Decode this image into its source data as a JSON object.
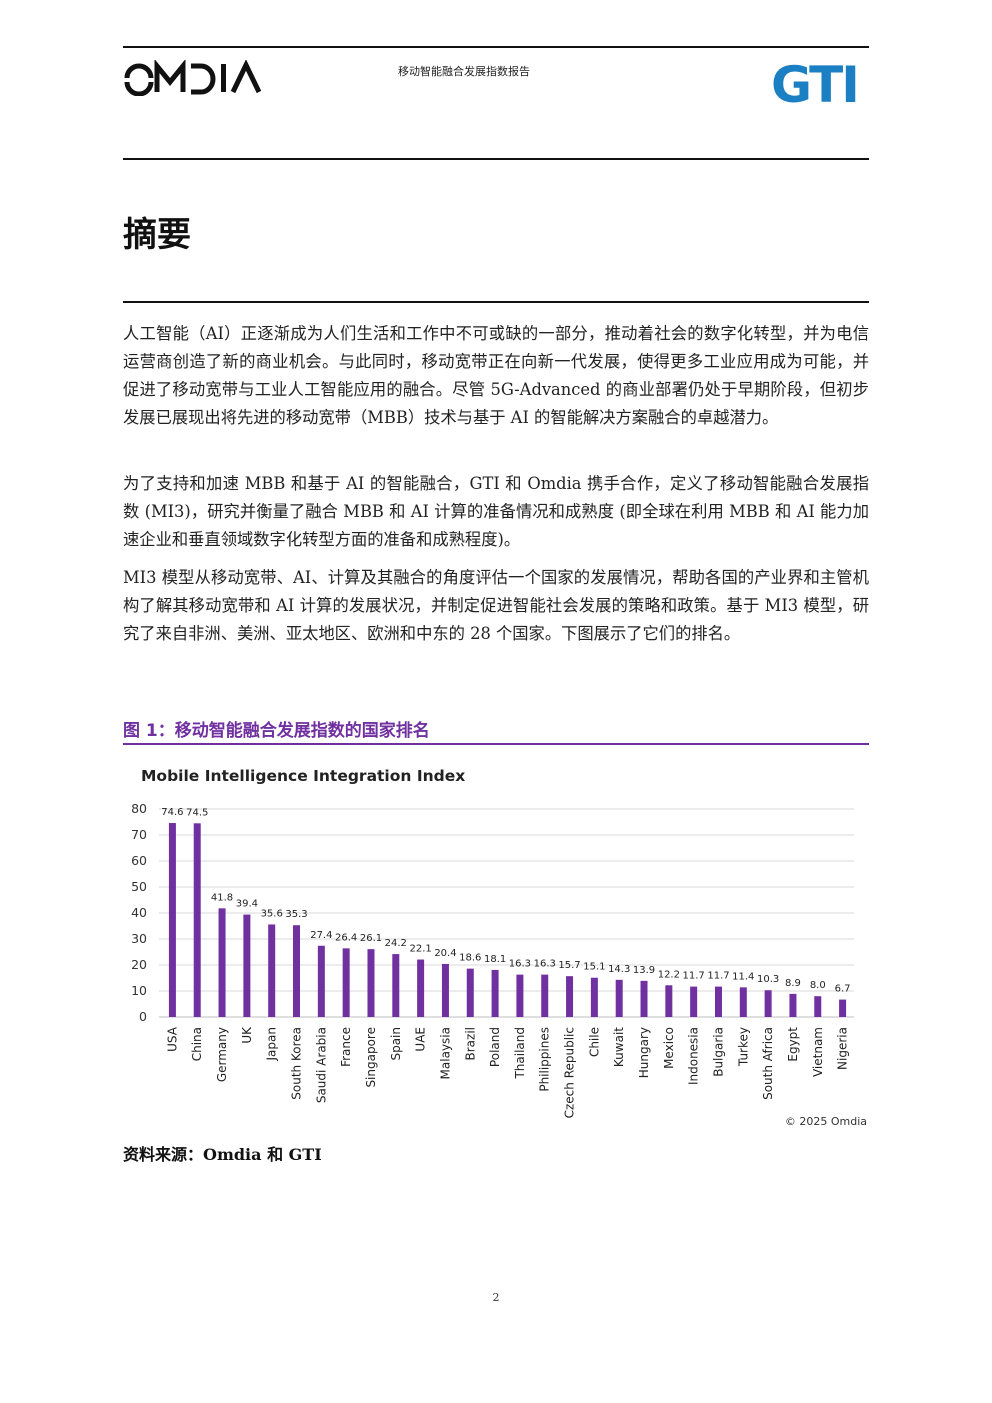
{
  "header": {
    "omdia_logo_text": "OMDIA",
    "report_title": "移动智能融合发展指数报告",
    "gti_logo_text": "GTI"
  },
  "section": {
    "title": "摘要"
  },
  "paragraphs": [
    "人工智能（AI）正逐渐成为人们生活和工作中不可或缺的一部分，推动着社会的数字化转型，并为电信运营商创造了新的商业机会。与此同时，移动宽带正在向新一代发展，使得更多工业应用成为可能，并促进了移动宽带与工业人工智能应用的融合。尽管 5G-Advanced 的商业部署仍处于早期阶段，但初步发展已展现出将先进的移动宽带（MBB）技术与基于 AI 的智能解决方案融合的卓越潜力。",
    "为了支持和加速 MBB 和基于 AI 的智能融合，GTI 和 Omdia 携手合作，定义了移动智能融合发展指数 (MI3)，研究并衡量了融合 MBB 和 AI 计算的准备情况和成熟度 (即全球在利用 MBB 和 AI 能力加速企业和垂直领域数字化转型方面的准备和成熟程度)。",
    "MI3 模型从移动宽带、AI、计算及其融合的角度评估一个国家的发展情况，帮助各国的产业界和主管机构了解其移动宽带和 AI 计算的发展状况，并制定促进智能社会发展的策略和政策。基于 MI3 模型，研究了来自非洲、美洲、亚太地区、欧洲和中东的 28 个国家。下图展示了它们的排名。"
  ],
  "figure": {
    "caption": "图 1：移动智能融合发展指数的国家排名",
    "source": "资料来源：Omdia 和 GTI",
    "copyright": "© 2025 Omdia"
  },
  "chart_data": {
    "type": "bar",
    "title": "Mobile Intelligence Integration Index",
    "xlabel": "",
    "ylabel": "",
    "ylim": [
      0,
      80
    ],
    "yticks": [
      0,
      10,
      20,
      30,
      40,
      50,
      60,
      70,
      80
    ],
    "grid": true,
    "bar_color": "#7030a0",
    "categories": [
      "USA",
      "China",
      "Germany",
      "UK",
      "Japan",
      "South Korea",
      "Saudi Arabia",
      "France",
      "Singapore",
      "Spain",
      "UAE",
      "Malaysia",
      "Brazil",
      "Poland",
      "Thailand",
      "Philippines",
      "Czech Republic",
      "Chile",
      "Kuwait",
      "Hungary",
      "Mexico",
      "Indonesia",
      "Bulgaria",
      "Turkey",
      "South Africa",
      "Egypt",
      "Vietnam",
      "Nigeria"
    ],
    "values": [
      74.6,
      74.5,
      41.8,
      39.4,
      35.6,
      35.3,
      27.4,
      26.4,
      26.1,
      24.2,
      22.1,
      20.4,
      18.6,
      18.1,
      16.3,
      16.3,
      15.7,
      15.1,
      14.3,
      13.9,
      12.2,
      11.7,
      11.7,
      11.4,
      10.3,
      8.9,
      8.0,
      6.7
    ],
    "value_labels": [
      "74.6",
      "74.5",
      "41.8",
      "39.4",
      "35.6",
      "35.3",
      "27.4",
      "26.4",
      "26.1",
      "24.2",
      "22.1",
      "20.4",
      "18.6",
      "18.1",
      "16.3",
      "16.3",
      "15.7",
      "15.1",
      "14.3",
      "13.9",
      "12.2",
      "11.7",
      "11.7",
      "11.4",
      "10.3",
      "8.9",
      "8.0",
      "6.7"
    ]
  },
  "page_number": "2"
}
